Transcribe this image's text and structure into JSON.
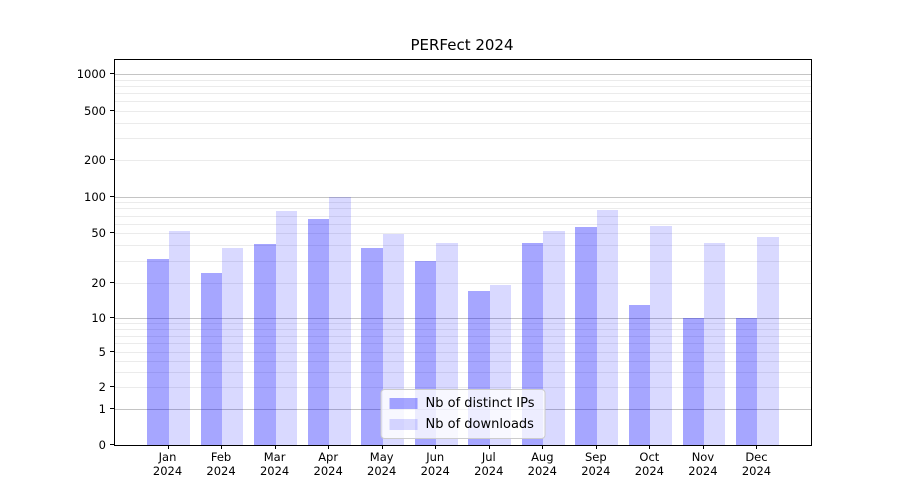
{
  "chart_data": {
    "type": "bar",
    "title": "PERFect 2024",
    "xlabel": "",
    "ylabel": "",
    "yscale": "symlog",
    "categories": [
      "Jan 2024",
      "Feb 2024",
      "Mar 2024",
      "Apr 2024",
      "May 2024",
      "Jun 2024",
      "Jul 2024",
      "Aug 2024",
      "Sep 2024",
      "Oct 2024",
      "Nov 2024",
      "Dec 2024"
    ],
    "series": [
      {
        "name": "Nb of distinct IPs",
        "color": "rgba(0,0,255,0.35)",
        "values": [
          31,
          24,
          41,
          66,
          38,
          30,
          17,
          42,
          56,
          13,
          10,
          10
        ]
      },
      {
        "name": "Nb of downloads",
        "color": "rgba(0,0,255,0.15)",
        "values": [
          52,
          38,
          76,
          100,
          49,
          42,
          19,
          52,
          78,
          57,
          42,
          47
        ]
      }
    ],
    "y_axis": {
      "ticks": [
        0,
        1,
        2,
        5,
        10,
        20,
        50,
        100,
        200,
        500,
        1000
      ],
      "ylim": [
        0,
        1300
      ]
    },
    "grid": "both",
    "legend_position": "lower center",
    "colors": {
      "grid_major": "#c4c4c4",
      "grid_minor": "#ebebeb",
      "spine": "#000000",
      "text": "#000000"
    }
  }
}
